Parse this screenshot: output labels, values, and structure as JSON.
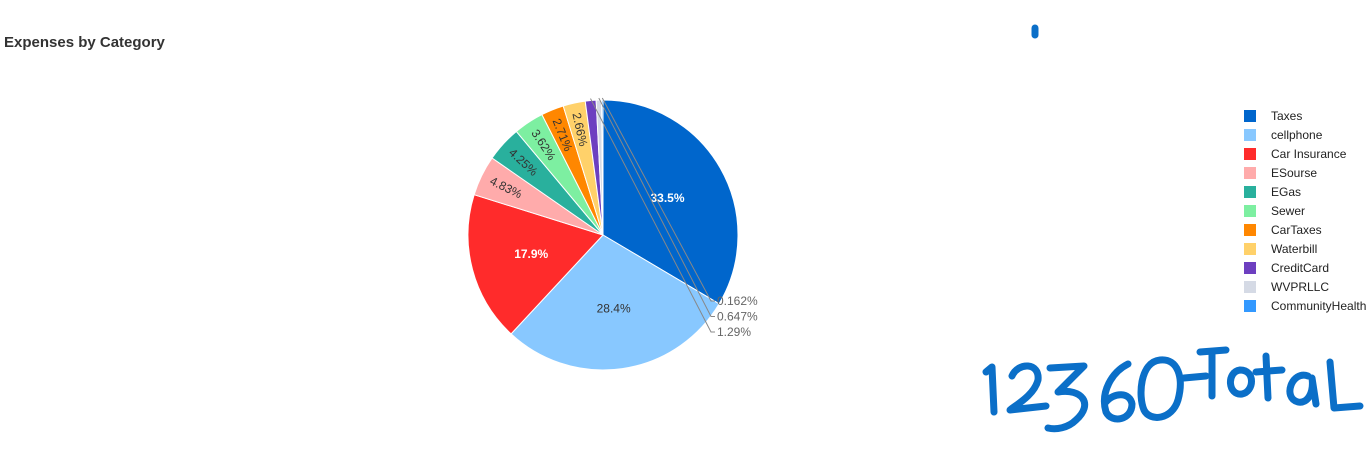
{
  "chart_data": {
    "type": "pie",
    "title": "Expenses by Category",
    "slices": [
      {
        "label": "Taxes",
        "percent": 33.5,
        "percent_label": "33.5%",
        "color": "#0066CC"
      },
      {
        "label": "cellphone",
        "percent": 28.4,
        "percent_label": "28.4%",
        "color": "#88C8FF"
      },
      {
        "label": "Car Insurance",
        "percent": 17.9,
        "percent_label": "17.9%",
        "color": "#FF2B2B"
      },
      {
        "label": "ESourse",
        "percent": 4.83,
        "percent_label": "4.83%",
        "color": "#FFABAB"
      },
      {
        "label": "EGas",
        "percent": 4.25,
        "percent_label": "4.25%",
        "color": "#29B09D"
      },
      {
        "label": "Sewer",
        "percent": 3.62,
        "percent_label": "3.62%",
        "color": "#7DEFA1"
      },
      {
        "label": "CarTaxes",
        "percent": 2.71,
        "percent_label": "2.71%",
        "color": "#FF8700"
      },
      {
        "label": "Waterbill",
        "percent": 2.66,
        "percent_label": "2.66%",
        "color": "#FFD16A"
      },
      {
        "label": "CreditCard",
        "percent": 1.29,
        "percent_label": "1.29%",
        "color": "#6D3FC0"
      },
      {
        "label": "WVPRLLC",
        "percent": 0.647,
        "percent_label": "0.647%",
        "color": "#D5DAE5"
      },
      {
        "label": "CommunityHealth",
        "percent": 0.162,
        "percent_label": "0.162%",
        "color": "#3399FF"
      }
    ],
    "legend_position": "right"
  },
  "annotation": {
    "handwritten_text": "12360-Total",
    "color": "#0B6FC8"
  }
}
